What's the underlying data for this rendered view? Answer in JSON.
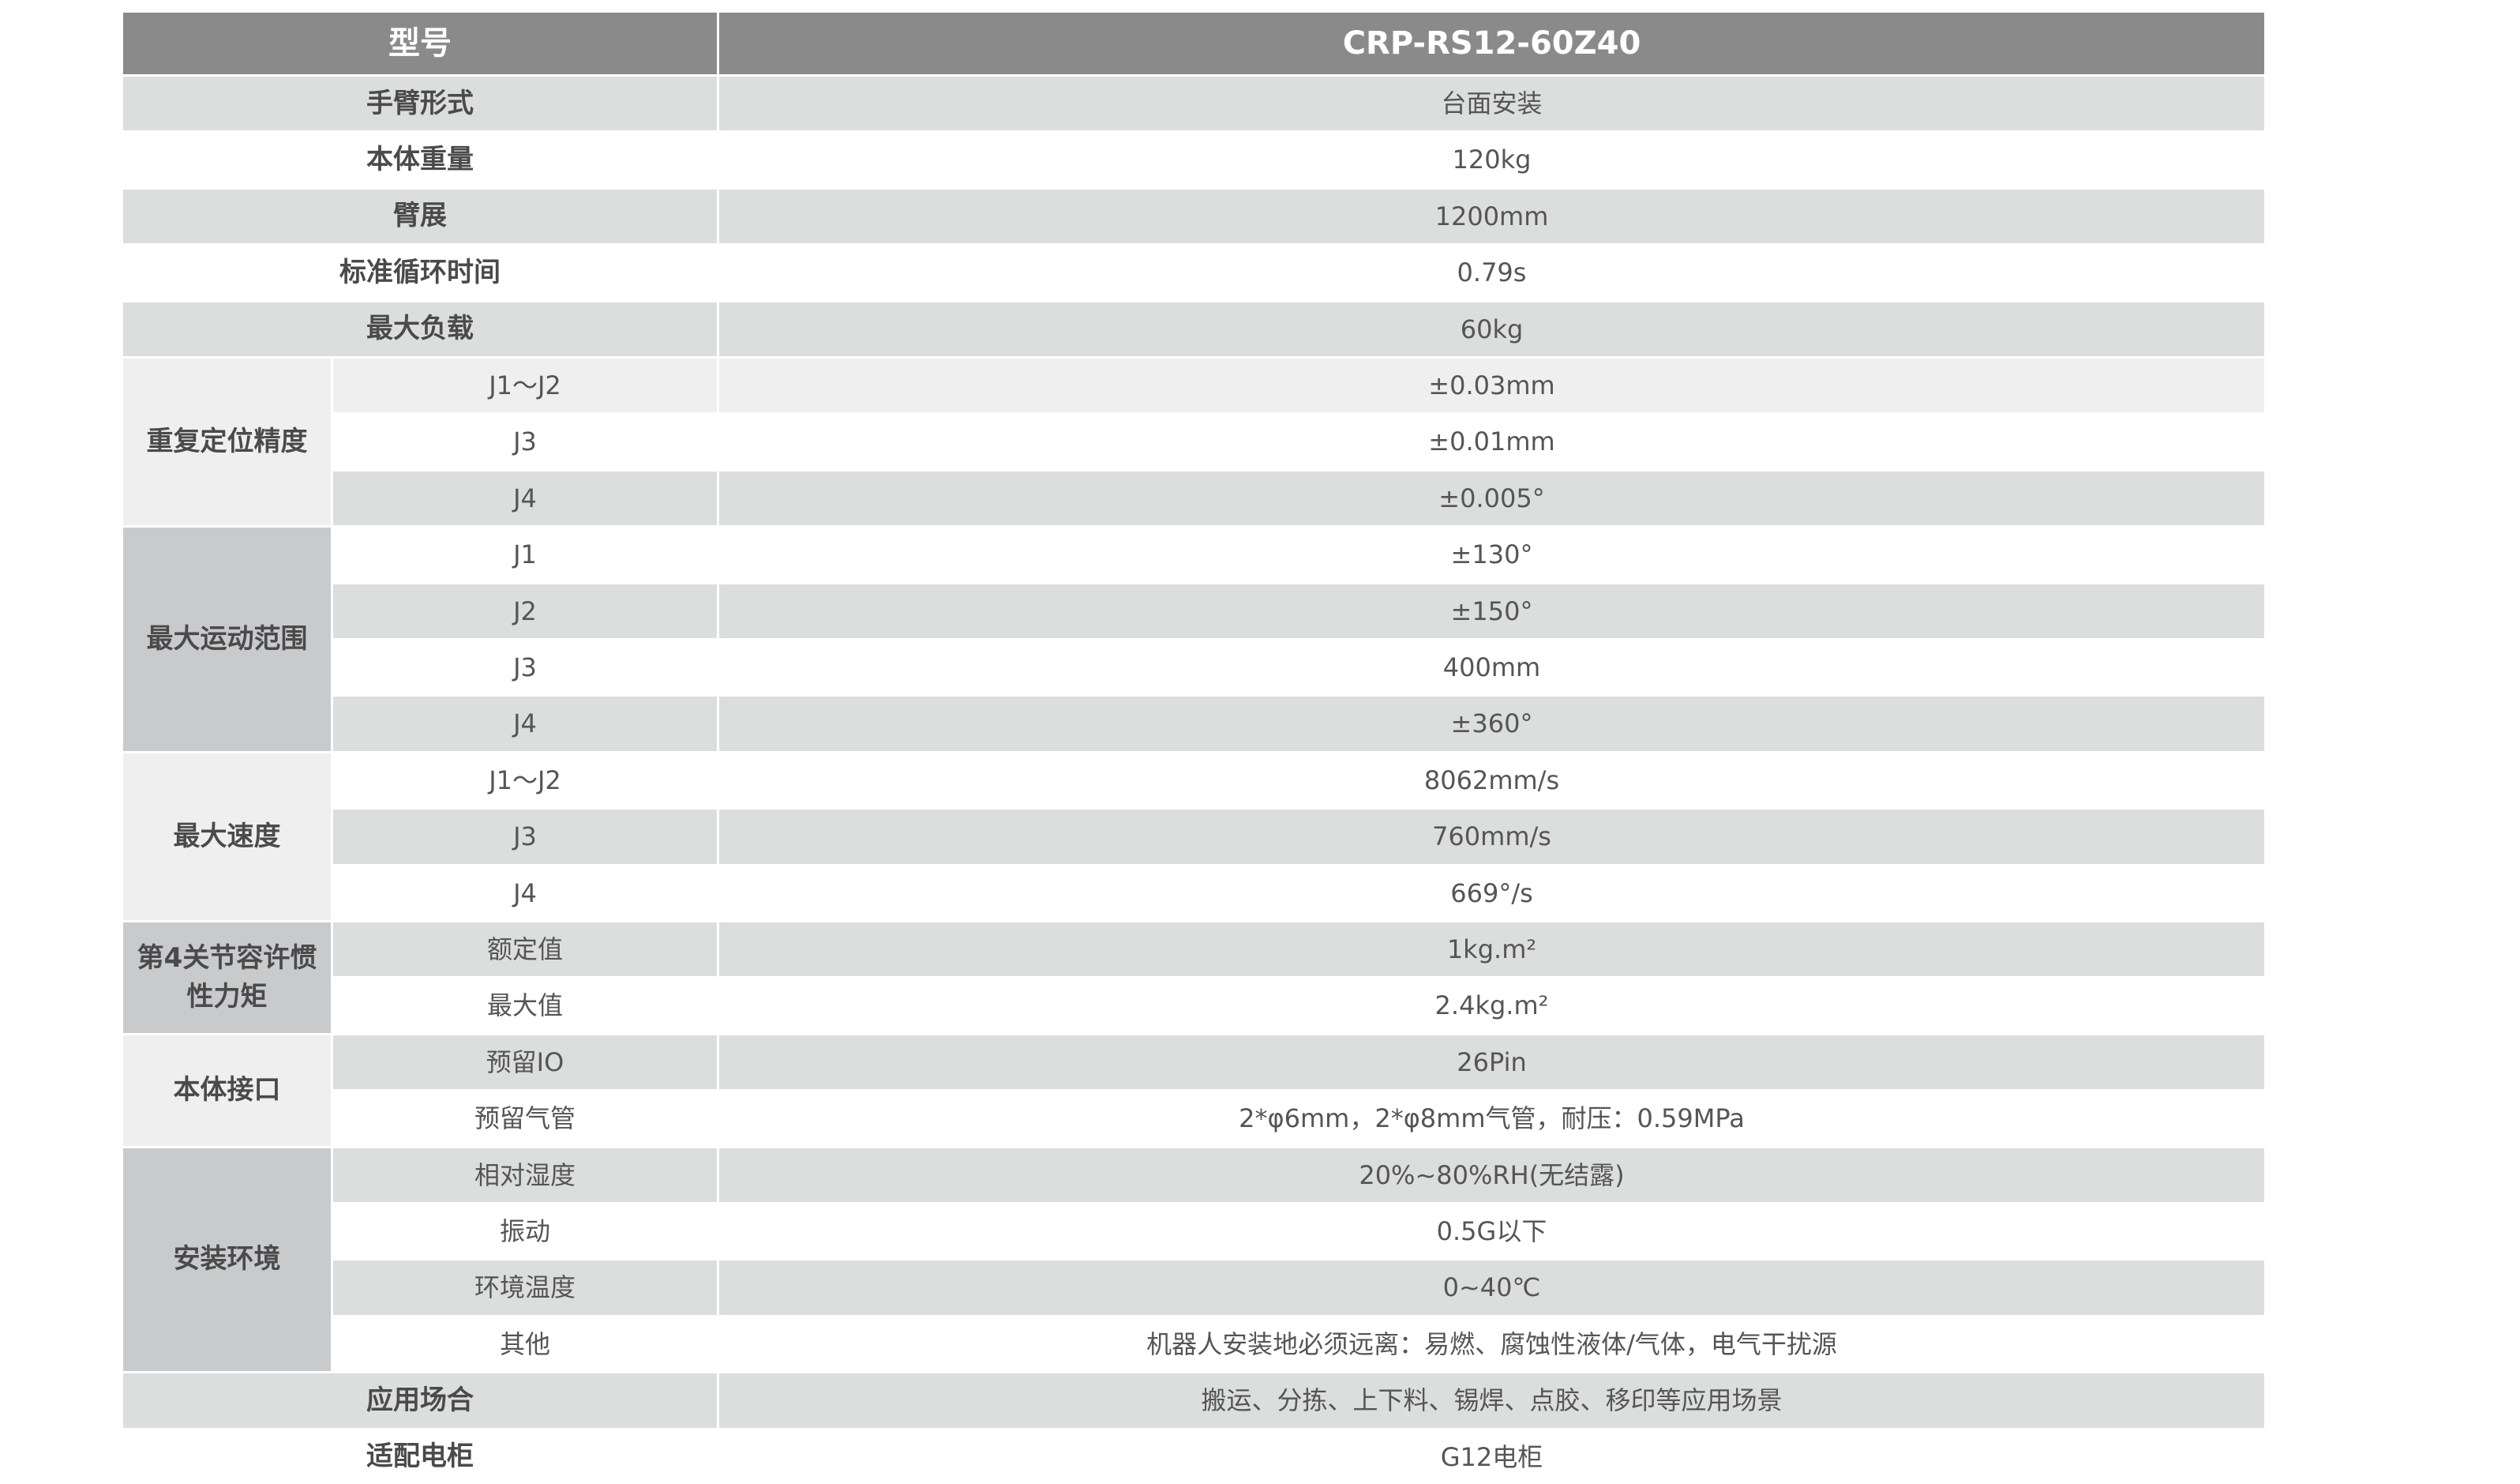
{
  "header": {
    "label": "型号",
    "model": "CRP-RS12-60Z40"
  },
  "colors": {
    "header_bg": "#8a8a8a",
    "row_gray": "#dcdddd",
    "row_white": "#ffffff",
    "group_light": "#efefef",
    "group_dark": "#c9cacb"
  },
  "rows": [
    {
      "label": "手臂形式",
      "value": "台面安装",
      "shade": "g"
    },
    {
      "label": "本体重量",
      "value": "120kg",
      "shade": "w"
    },
    {
      "label": "臂展",
      "value": "1200mm",
      "shade": "g"
    },
    {
      "label": "标准循环时间",
      "value": "0.79s",
      "shade": "w"
    },
    {
      "label": "最大负载",
      "value": "60kg",
      "shade": "g"
    },
    {
      "group": "重复定位精度",
      "group_shade": "l",
      "items": [
        {
          "label": "J1～J2",
          "value": "±0.03mm",
          "shade": "l"
        },
        {
          "label": "J3",
          "value": "±0.01mm",
          "shade": "w"
        },
        {
          "label": "J4",
          "value": "±0.005°",
          "shade": "g"
        }
      ]
    },
    {
      "group": "最大运动范围",
      "group_shade": "d",
      "items": [
        {
          "label": "J1",
          "value": "±130°",
          "shade": "w"
        },
        {
          "label": "J2",
          "value": "±150°",
          "shade": "g"
        },
        {
          "label": "J3",
          "value": "400mm",
          "shade": "w"
        },
        {
          "label": "J4",
          "value": "±360°",
          "shade": "g"
        }
      ]
    },
    {
      "group": "最大速度",
      "group_shade": "l",
      "items": [
        {
          "label": "J1～J2",
          "value": "8062mm/s",
          "shade": "w"
        },
        {
          "label": "J3",
          "value": "760mm/s",
          "shade": "g"
        },
        {
          "label": "J4",
          "value": "669°/s",
          "shade": "w"
        }
      ]
    },
    {
      "group": "第4关节容许惯性力矩",
      "group_shade": "d",
      "items": [
        {
          "label": "额定值",
          "value": "1kg.m²",
          "shade": "g"
        },
        {
          "label": "最大值",
          "value": "2.4kg.m²",
          "shade": "w"
        }
      ]
    },
    {
      "group": "本体接口",
      "group_shade": "l",
      "items": [
        {
          "label": "预留IO",
          "value": "26Pin",
          "shade": "g"
        },
        {
          "label": "预留气管",
          "value": "2*φ6mm，2*φ8mm气管，耐压：0.59MPa",
          "shade": "w"
        }
      ]
    },
    {
      "group": "安装环境",
      "group_shade": "d",
      "items": [
        {
          "label": "相对湿度",
          "value": "20%~80%RH(无结露)",
          "shade": "g"
        },
        {
          "label": "振动",
          "value": "0.5G以下",
          "shade": "w"
        },
        {
          "label": "环境温度",
          "value": "0~40℃",
          "shade": "g"
        },
        {
          "label": "其他",
          "value": "机器人安装地必须远离：易燃、腐蚀性液体/气体，电气干扰源",
          "shade": "w"
        }
      ]
    },
    {
      "label": "应用场合",
      "value": "搬运、分拣、上下料、锡焊、点胶、移印等应用场景",
      "shade": "g"
    },
    {
      "label": "适配电柜",
      "value": "G12电柜",
      "shade": "w"
    }
  ]
}
